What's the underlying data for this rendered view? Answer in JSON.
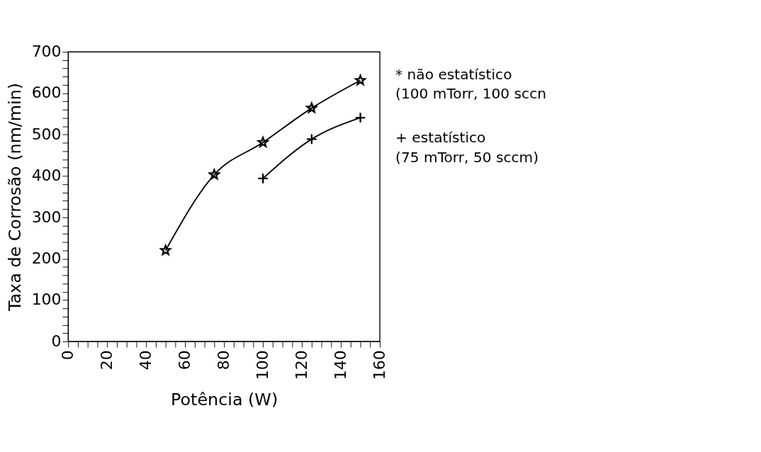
{
  "chart_data": {
    "type": "line",
    "xlabel": "Potência (W)",
    "ylabel": "Taxa de Corrosão (nm/min)",
    "series": [
      {
        "name": "* não estatístico\n(100 mTorr, 100 sccn",
        "color": "#000000",
        "marker": "star",
        "x": [
          50,
          75,
          100,
          125,
          150
        ],
        "values": [
          220,
          403,
          481,
          564,
          631
        ]
      },
      {
        "name": "+ estatístico\n(75 mTorr, 50 sccm)",
        "color": "#000000",
        "marker": "cross",
        "x": [
          100,
          125,
          150
        ],
        "values": [
          394,
          489,
          541
        ]
      }
    ],
    "xlim": [
      0,
      160
    ],
    "xticks": [
      0,
      {
        "value": 5,
        "label": null
      },
      {
        "value": 10,
        "label": null
      },
      {
        "value": 15,
        "label": null
      },
      20,
      {
        "value": 25,
        "label": null
      },
      {
        "value": 30,
        "label": null
      },
      {
        "value": 35,
        "label": null
      },
      40,
      {
        "value": 45,
        "label": null
      },
      {
        "value": 50,
        "label": null
      },
      {
        "value": 55,
        "label": null
      },
      60,
      {
        "value": 65,
        "label": null
      },
      {
        "value": 70,
        "label": null
      },
      {
        "value": 75,
        "label": null
      },
      80,
      {
        "value": 85,
        "label": null
      },
      {
        "value": 90,
        "label": null
      },
      {
        "value": 95,
        "label": null
      },
      100,
      {
        "value": 105,
        "label": null
      },
      {
        "value": 110,
        "label": null
      },
      {
        "value": 115,
        "label": null
      },
      120,
      {
        "value": 125,
        "label": null
      },
      {
        "value": 130,
        "label": null
      },
      {
        "value": 135,
        "label": null
      },
      140,
      {
        "value": 145,
        "label": null
      },
      {
        "value": 150,
        "label": null
      },
      {
        "value": 155,
        "label": null
      },
      160
    ],
    "ylim": [
      0,
      700
    ],
    "yticks": [
      0,
      {
        "value": 20,
        "label": null
      },
      {
        "value": 40,
        "label": null
      },
      {
        "value": 60,
        "label": null
      },
      {
        "value": 80,
        "label": null
      },
      100,
      {
        "value": 120,
        "label": null
      },
      {
        "value": 140,
        "label": null
      },
      {
        "value": 160,
        "label": null
      },
      {
        "value": 180,
        "label": null
      },
      200,
      {
        "value": 220,
        "label": null
      },
      {
        "value": 240,
        "label": null
      },
      {
        "value": 260,
        "label": null
      },
      {
        "value": 280,
        "label": null
      },
      300,
      {
        "value": 320,
        "label": null
      },
      {
        "value": 340,
        "label": null
      },
      {
        "value": 360,
        "label": null
      },
      {
        "value": 380,
        "label": null
      },
      400,
      {
        "value": 420,
        "label": null
      },
      {
        "value": 440,
        "label": null
      },
      {
        "value": 460,
        "label": null
      },
      {
        "value": 480,
        "label": null
      },
      500,
      {
        "value": 520,
        "label": null
      },
      {
        "value": 540,
        "label": null
      },
      {
        "value": 560,
        "label": null
      },
      {
        "value": 580,
        "label": null
      },
      600,
      {
        "value": 620,
        "label": null
      },
      {
        "value": 640,
        "label": null
      },
      {
        "value": 660,
        "label": null
      },
      {
        "value": 680,
        "label": null
      },
      700
    ],
    "grid": false,
    "legend": "right",
    "line_style": "solid"
  }
}
